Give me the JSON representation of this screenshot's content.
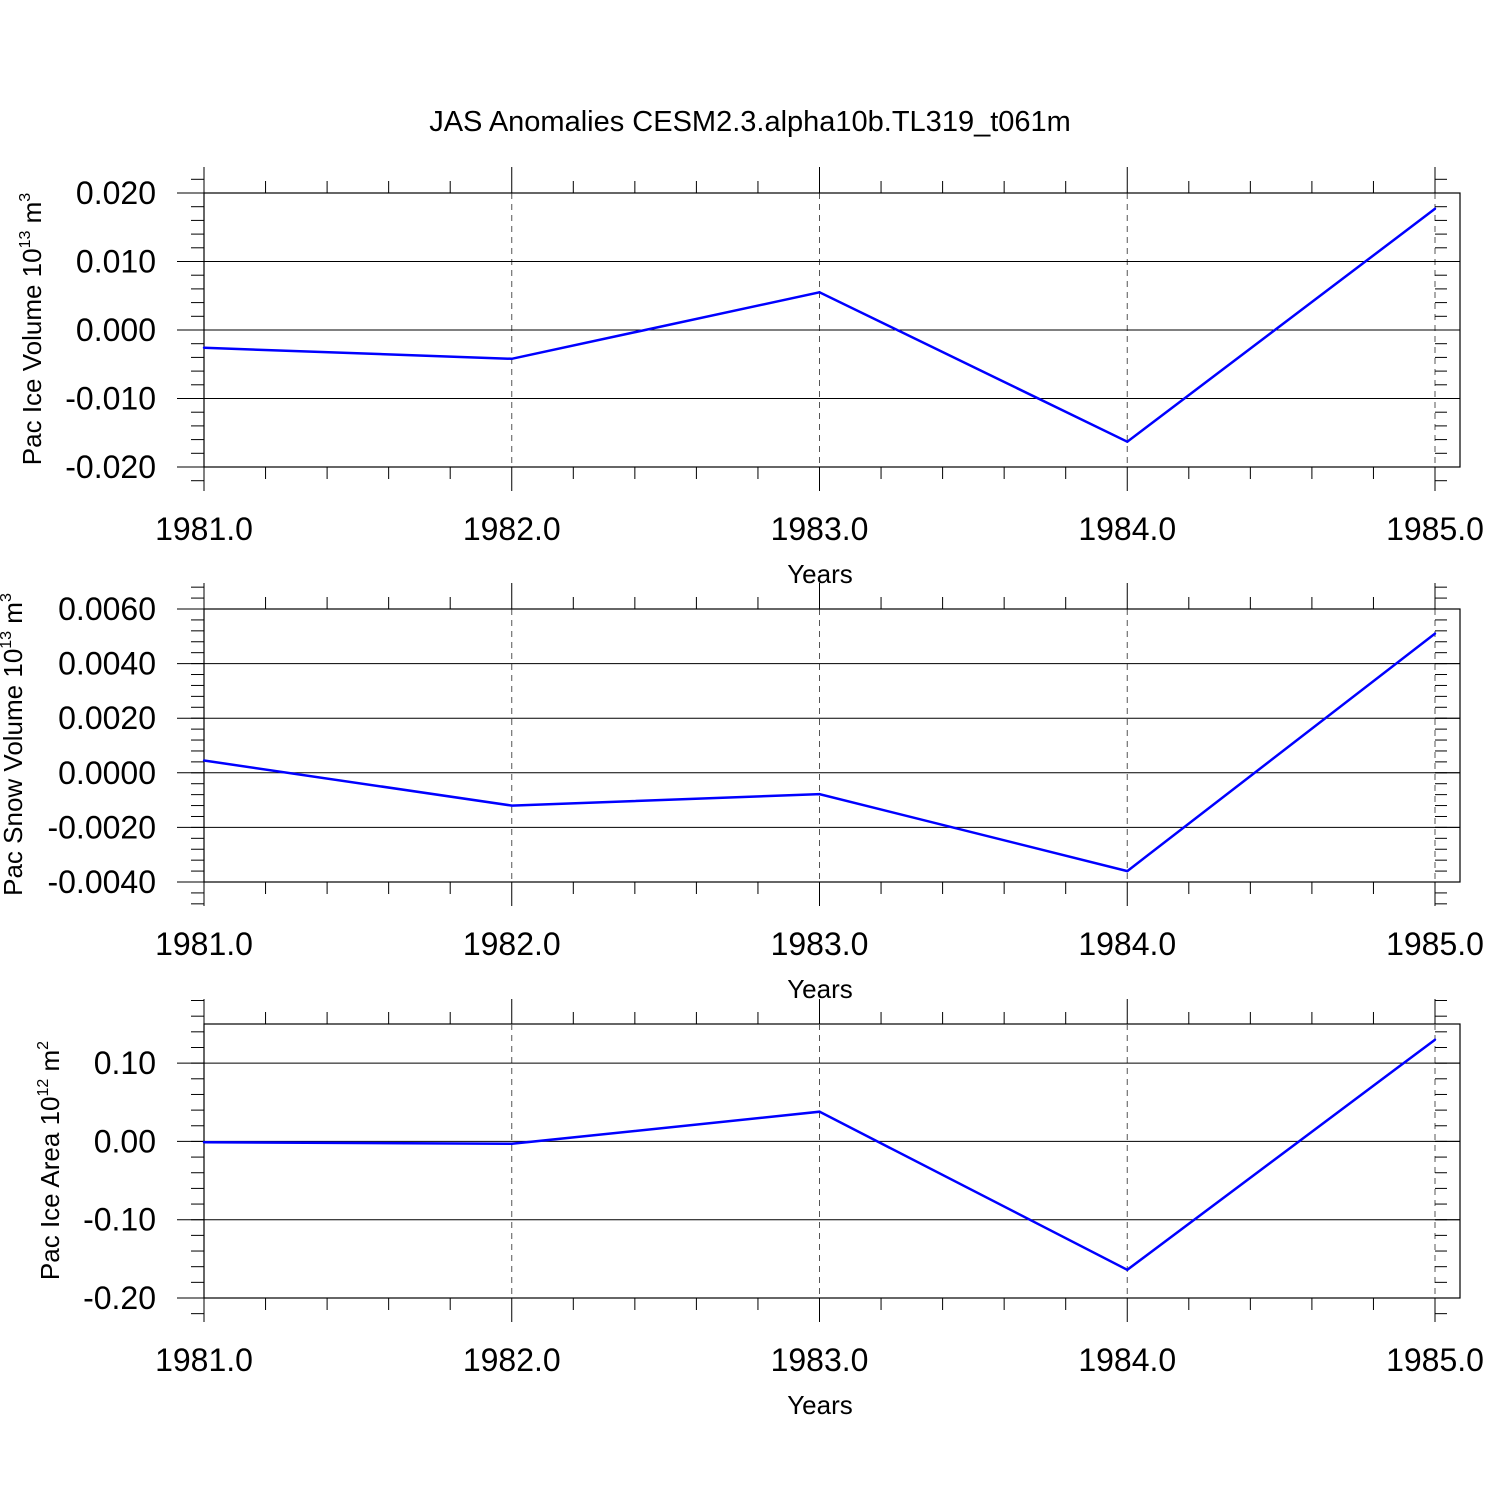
{
  "figure": {
    "title": "JAS Anomalies CESM2.3.alpha10b.TL319_t061m"
  },
  "chart_data": [
    {
      "type": "line",
      "title": "",
      "xlabel": "Years",
      "ylabel": {
        "prefix": "Pac Ice Volume 10",
        "exp": "13",
        "mid": " m",
        "unit_exp": "3"
      },
      "x": [
        1981.0,
        1982.0,
        1983.0,
        1984.0,
        1985.0
      ],
      "series": [
        {
          "values": [
            -0.0026,
            -0.0042,
            0.0055,
            -0.0163,
            0.0177
          ],
          "color": "#0000ff"
        }
      ],
      "xlim": [
        1981.0,
        1985.0
      ],
      "ylim": [
        -0.02,
        0.02
      ],
      "xticks": [
        "1981.0",
        "1982.0",
        "1983.0",
        "1984.0",
        "1985.0"
      ],
      "yticks": [
        {
          "value": 0.02,
          "label": "0.020"
        },
        {
          "value": 0.01,
          "label": "0.010"
        },
        {
          "value": 0.0,
          "label": "0.000"
        },
        {
          "value": -0.01,
          "label": "-0.010"
        },
        {
          "value": -0.02,
          "label": "-0.020"
        }
      ],
      "y_minor_step": 0.002,
      "grid": "vertical dashed at major x ticks"
    },
    {
      "type": "line",
      "title": "",
      "xlabel": "Years",
      "ylabel": {
        "prefix": "Pac Snow Volume 10",
        "exp": "13",
        "mid": " m",
        "unit_exp": "3"
      },
      "x": [
        1981.0,
        1982.0,
        1983.0,
        1984.0,
        1985.0
      ],
      "series": [
        {
          "values": [
            0.00045,
            -0.0012,
            -0.00078,
            -0.0036,
            0.0051
          ],
          "color": "#0000ff"
        }
      ],
      "xlim": [
        1981.0,
        1985.0
      ],
      "ylim": [
        -0.004,
        0.006
      ],
      "xticks": [
        "1981.0",
        "1982.0",
        "1983.0",
        "1984.0",
        "1985.0"
      ],
      "yticks": [
        {
          "value": 0.006,
          "label": "0.0060"
        },
        {
          "value": 0.004,
          "label": "0.0040"
        },
        {
          "value": 0.002,
          "label": "0.0020"
        },
        {
          "value": 0.0,
          "label": "0.0000"
        },
        {
          "value": -0.002,
          "label": "-0.0020"
        },
        {
          "value": -0.004,
          "label": "-0.0040"
        }
      ],
      "y_minor_step": 0.0004,
      "grid": "vertical dashed at major x ticks"
    },
    {
      "type": "line",
      "title": "",
      "xlabel": "Years",
      "ylabel": {
        "prefix": "Pac Ice Area 10",
        "exp": "12",
        "mid": " m",
        "unit_exp": "2"
      },
      "x": [
        1981.0,
        1982.0,
        1983.0,
        1984.0,
        1985.0
      ],
      "series": [
        {
          "values": [
            -0.001,
            -0.003,
            0.038,
            -0.164,
            0.13
          ],
          "color": "#0000ff"
        }
      ],
      "xlim": [
        1981.0,
        1985.0
      ],
      "ylim": [
        -0.2,
        0.15
      ],
      "xticks": [
        "1981.0",
        "1982.0",
        "1983.0",
        "1984.0",
        "1985.0"
      ],
      "yticks": [
        {
          "value": 0.1,
          "label": "0.10"
        },
        {
          "value": 0.0,
          "label": "0.00"
        },
        {
          "value": -0.1,
          "label": "-0.10"
        },
        {
          "value": -0.2,
          "label": "-0.20"
        }
      ],
      "y_minor_step": 0.02,
      "grid": "vertical dashed at major x ticks"
    }
  ]
}
